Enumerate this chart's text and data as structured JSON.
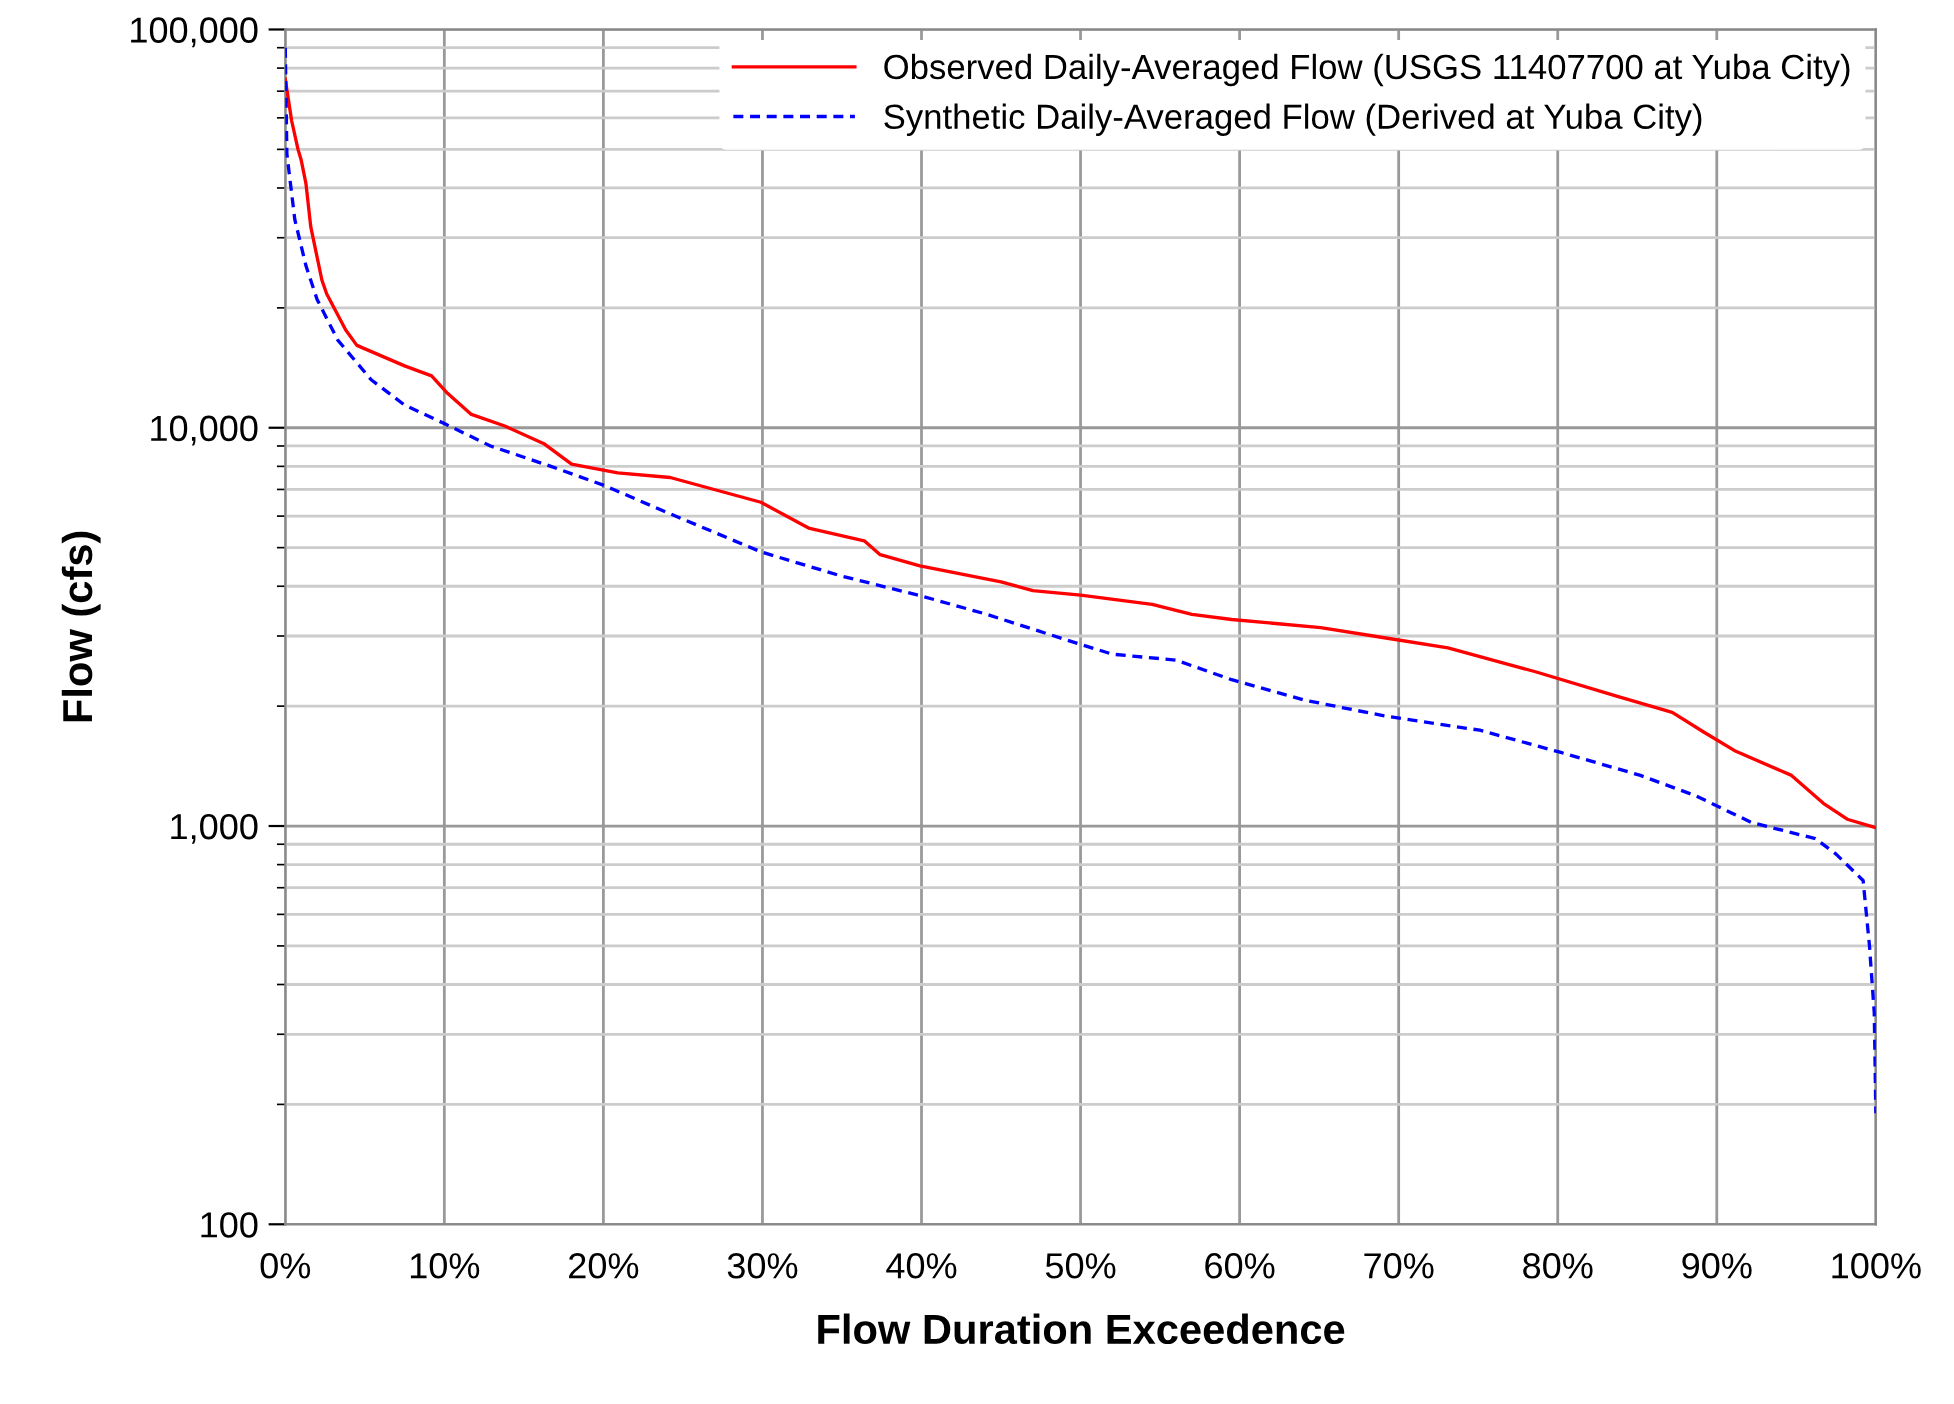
{
  "chart_data": {
    "type": "line",
    "xlabel": "Flow Duration Exceedence",
    "ylabel": "Flow (cfs)",
    "log": "y",
    "grid": true,
    "legend": "top right",
    "marker": "none",
    "xlim": [
      0,
      100
    ],
    "ylim": [
      100,
      100000
    ],
    "xticks": [
      {
        "value": 0,
        "label": "0%"
      },
      {
        "value": 10,
        "label": "10%"
      },
      {
        "value": 20,
        "label": "20%"
      },
      {
        "value": 30,
        "label": "30%"
      },
      {
        "value": 40,
        "label": "40%"
      },
      {
        "value": 50,
        "label": "50%"
      },
      {
        "value": 60,
        "label": "60%"
      },
      {
        "value": 70,
        "label": "70%"
      },
      {
        "value": 80,
        "label": "80%"
      },
      {
        "value": 90,
        "label": "90%"
      },
      {
        "value": 100,
        "label": "100%"
      }
    ],
    "yticks": [
      {
        "value": 100,
        "label": "100"
      },
      {
        "value": 1000,
        "label": "1,000"
      },
      {
        "value": 10000,
        "label": "10,000"
      },
      {
        "value": 100000,
        "label": "100,000"
      }
    ],
    "series": [
      {
        "name": "Observed Daily-Averaged Flow (USGS 11407700 at Yuba City)",
        "color": "#ff0000",
        "line_style": "solid",
        "x": [
          0,
          0.4,
          0.8,
          1.0,
          1.3,
          1.6,
          2.3,
          2.6,
          3.8,
          4.5,
          7.5,
          9.2,
          10.2,
          11.7,
          13.8,
          16.3,
          18.0,
          20.9,
          24.2,
          29.9,
          32.9,
          36.4,
          37.4,
          39.9,
          45.0,
          47.0,
          50.0,
          54.5,
          57.0,
          59.5,
          65.1,
          69.1,
          73.1,
          78.6,
          83.7,
          87.2,
          89.2,
          91.2,
          94.7,
          96.7,
          98.2,
          100
        ],
        "values": [
          75000,
          59000,
          50000,
          47000,
          41000,
          32000,
          23500,
          21700,
          17600,
          16100,
          14300,
          13500,
          12200,
          10800,
          10100,
          9100,
          8100,
          7700,
          7500,
          6500,
          5600,
          5200,
          4800,
          4500,
          4100,
          3900,
          3800,
          3600,
          3400,
          3300,
          3150,
          2970,
          2800,
          2440,
          2120,
          1930,
          1720,
          1540,
          1340,
          1140,
          1040,
          990
        ]
      },
      {
        "name": "Synthetic Daily-Averaged Flow (Derived at Yuba City)",
        "color": "#0000ff",
        "line_style": "dashed",
        "x": [
          0,
          0.1,
          0.6,
          1.3,
          2.0,
          3.3,
          5.4,
          7.5,
          10.1,
          12.9,
          16.7,
          20.1,
          23.9,
          29.9,
          34.9,
          39.9,
          44.0,
          49.5,
          52.0,
          56.0,
          59.5,
          64.1,
          69.1,
          75.1,
          80.2,
          85.2,
          88.7,
          92.2,
          96.2,
          97.5,
          99.2,
          99.6,
          99.9,
          100
        ],
        "values": [
          90000,
          48700,
          33300,
          25500,
          21000,
          16600,
          13200,
          11400,
          10200,
          9000,
          8000,
          7150,
          6150,
          4880,
          4250,
          3790,
          3410,
          2900,
          2700,
          2610,
          2330,
          2070,
          1890,
          1740,
          1530,
          1340,
          1190,
          1020,
          930,
          850,
          730,
          500,
          340,
          190
        ]
      }
    ]
  }
}
